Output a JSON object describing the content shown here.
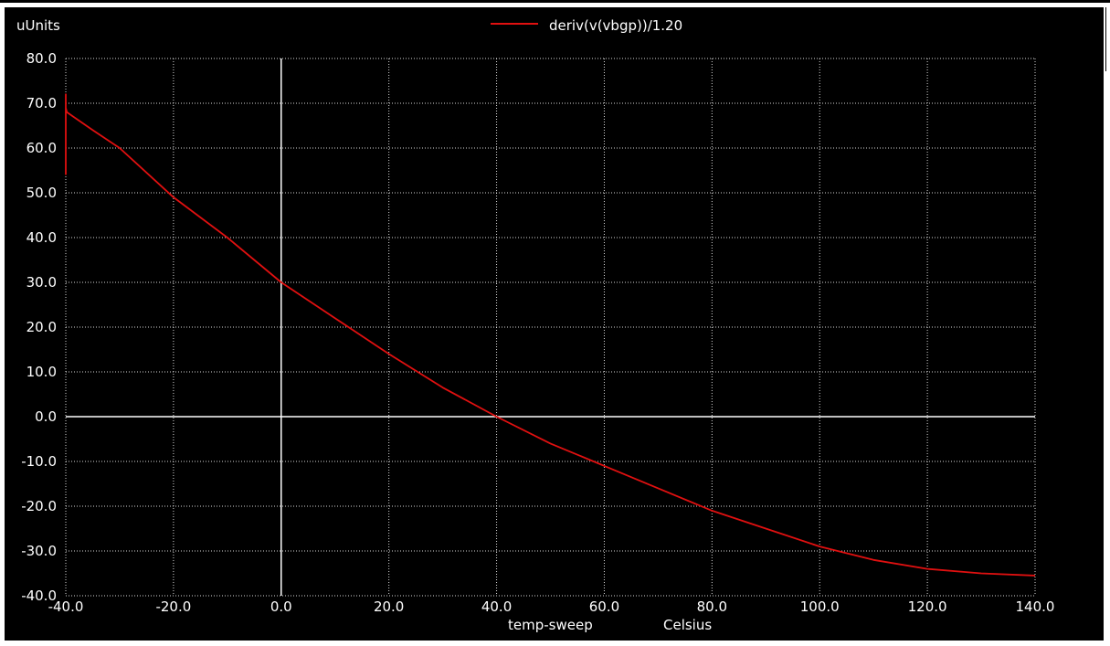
{
  "chart_data": {
    "type": "line",
    "ylabel_unit": "uUnits",
    "xlabel": "temp-sweep",
    "xunit": "Celsius",
    "xlim": [
      -40,
      140
    ],
    "ylim": [
      -40,
      80
    ],
    "x_ticks": [
      -40,
      -20,
      0,
      20,
      40,
      60,
      80,
      100,
      120,
      140
    ],
    "x_tick_labels": [
      "-40.0",
      "-20.0",
      "0.0",
      "20.0",
      "40.0",
      "60.0",
      "80.0",
      "100.0",
      "120.0",
      "140.0"
    ],
    "y_ticks": [
      80,
      70,
      60,
      50,
      40,
      30,
      20,
      10,
      0,
      -10,
      -20,
      -30,
      -40
    ],
    "y_tick_labels": [
      "80.0",
      "70.0",
      "60.0",
      "50.0",
      "40.0",
      "30.0",
      "20.0",
      "10.0",
      "0.0",
      "-10.0",
      "-20.0",
      "-30.0",
      "-40.0"
    ],
    "grid": true,
    "legend_position": "top-center",
    "series": [
      {
        "name": "deriv(v(vbgp))/1.20",
        "color": "#e01010",
        "x": [
          -40,
          -40,
          -40,
          -39.8,
          -35,
          -30,
          -20,
          -10,
          0,
          10,
          20,
          30,
          40,
          50,
          60,
          70,
          80,
          90,
          100,
          110,
          120,
          130,
          140
        ],
        "y": [
          54,
          72,
          69,
          68,
          64,
          60,
          49,
          40,
          30,
          22,
          14,
          6.5,
          0,
          -6,
          -11,
          -16,
          -21,
          -25,
          -29,
          -32,
          -34,
          -35,
          -35.5
        ]
      }
    ]
  },
  "colors": {
    "background": "#000000",
    "axes": "#ffffff",
    "grid": "#ffffff",
    "trace": "#e01010"
  }
}
